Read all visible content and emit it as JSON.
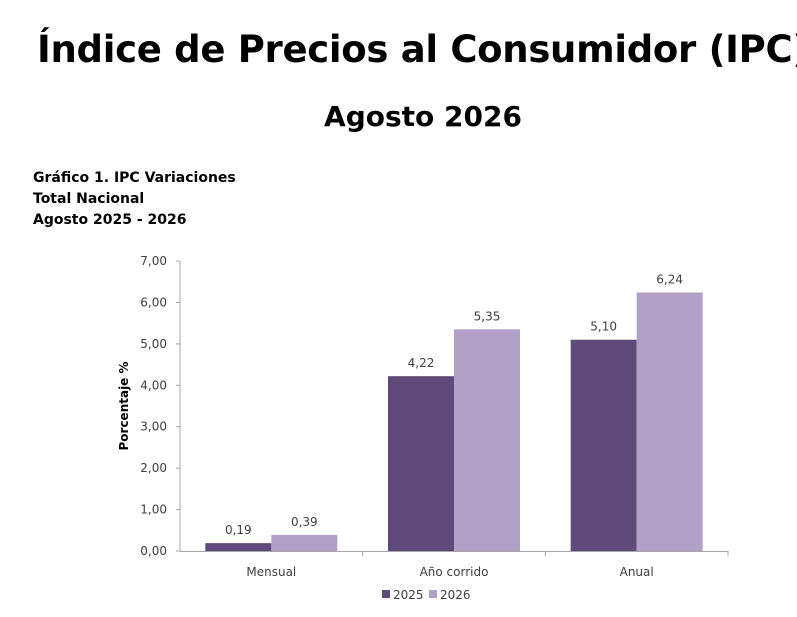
{
  "page": {
    "title": "Índice de Precios al Consumidor (IPC)",
    "subtitle": "Agosto 2026"
  },
  "caption": {
    "line1": "Gráfico 1. IPC Variaciones",
    "line2": "Total Nacional",
    "line3": "Agosto 2025 - 2026"
  },
  "chart_data": {
    "type": "bar",
    "categories": [
      "Mensual",
      "Año corrido",
      "Anual"
    ],
    "series": [
      {
        "name": "2025",
        "values": [
          0.19,
          4.22,
          5.1
        ],
        "labels": [
          "0,19",
          "4,22",
          "5,10"
        ],
        "color": "#5f4b7a"
      },
      {
        "name": "2026",
        "values": [
          0.39,
          5.35,
          6.24
        ],
        "labels": [
          "0,39",
          "5,35",
          "6,24"
        ],
        "color": "#b1a0c7"
      }
    ],
    "ylabel": "Porcentaje %",
    "ylim": [
      0,
      7
    ],
    "yticks": [
      0,
      1,
      2,
      3,
      4,
      5,
      6,
      7
    ],
    "ytick_labels": [
      "0,00",
      "1,00",
      "2,00",
      "3,00",
      "4,00",
      "5,00",
      "6,00",
      "7,00"
    ],
    "grid": false,
    "legend_position": "bottom"
  }
}
